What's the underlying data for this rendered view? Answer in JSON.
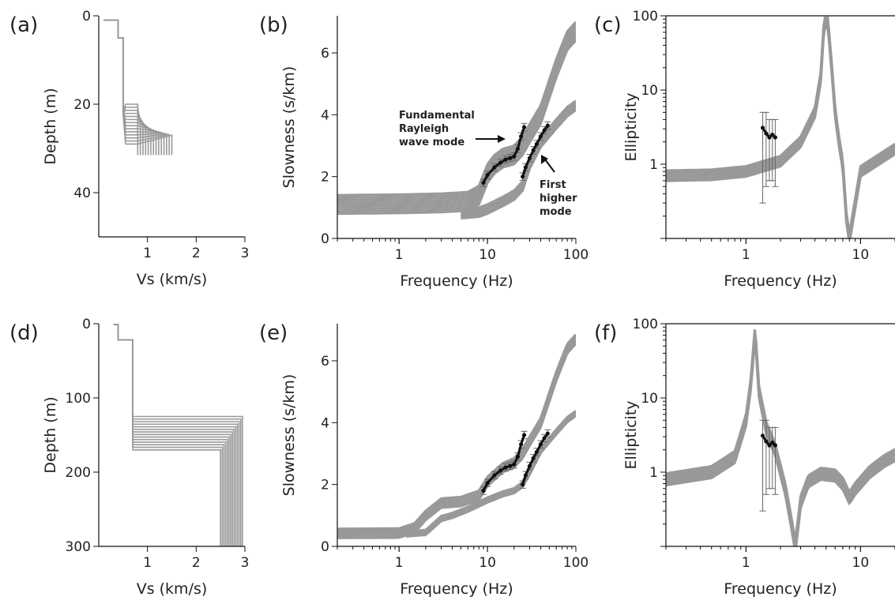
{
  "figure": {
    "background": "#ffffff",
    "ensemble_color": "#999999",
    "observed_color": "#111111"
  },
  "chart_data": [
    {
      "panel": "(a)",
      "type": "line",
      "xlabel": "Vs (km/s)",
      "ylabel": "Depth (m)",
      "xlim": [
        0,
        3
      ],
      "ylim": [
        0,
        50
      ],
      "y_inverted": true,
      "xticks": [
        1,
        2,
        3
      ],
      "yticks": [
        0,
        20,
        40
      ],
      "series": [
        {
          "role": "ensemble",
          "color": "#999999",
          "x": [
            0.1,
            0.4,
            0.4,
            0.5,
            0.5,
            0.55,
            0.55,
            0.8,
            0.8,
            1.5
          ],
          "y": [
            1,
            1,
            5,
            5,
            22,
            22,
            25,
            25,
            31.5,
            31.5
          ],
          "spread": {
            "vs_layer4": [
              0.8,
              1.5
            ],
            "depth_layer3": [
              20,
              29
            ]
          }
        }
      ]
    },
    {
      "panel": "(b)",
      "type": "line",
      "xlabel": "Frequency (Hz)",
      "ylabel": "Slowness (s/km)",
      "xscale": "log",
      "xlim": [
        0.2,
        100
      ],
      "ylim": [
        0,
        7.2
      ],
      "xticks": [
        1,
        10,
        100
      ],
      "yticks": [
        0,
        2,
        4,
        6
      ],
      "annotations": [
        {
          "text": [
            "Fundamental",
            "Rayleigh",
            "wave mode"
          ],
          "x": 12,
          "y": 2.75
        },
        {
          "text": [
            "First",
            "higher",
            "mode"
          ],
          "x": 32,
          "y": 2.3
        }
      ],
      "series": [
        {
          "role": "fundamental-ensemble",
          "color": "#999999",
          "x": [
            0.2,
            1,
            3,
            6,
            8,
            10,
            12,
            15,
            20,
            25,
            30,
            40,
            60,
            80,
            100
          ],
          "y": [
            1.1,
            1.12,
            1.15,
            1.2,
            1.4,
            2.1,
            2.4,
            2.6,
            2.7,
            3.0,
            3.4,
            4.0,
            5.5,
            6.4,
            6.7
          ],
          "spread": 0.3
        },
        {
          "role": "higher-mode-ensemble",
          "color": "#999999",
          "x": [
            5,
            8,
            10,
            15,
            20,
            25,
            30,
            40,
            60,
            80,
            100
          ],
          "y": [
            0.8,
            0.85,
            0.95,
            1.2,
            1.4,
            1.7,
            2.4,
            3.1,
            3.7,
            4.1,
            4.3
          ],
          "spread": 0.15
        },
        {
          "role": "observed",
          "color": "#111111",
          "error_bars": 0.12,
          "x": [
            9,
            10,
            12,
            14,
            16,
            18,
            20,
            22,
            24,
            26
          ],
          "y": [
            1.8,
            2.05,
            2.3,
            2.45,
            2.55,
            2.6,
            2.65,
            2.9,
            3.3,
            3.6
          ]
        },
        {
          "role": "observed",
          "color": "#111111",
          "error_bars": 0.12,
          "x": [
            25,
            27,
            30,
            33,
            36,
            40,
            44,
            48
          ],
          "y": [
            2.0,
            2.3,
            2.6,
            2.85,
            3.05,
            3.3,
            3.5,
            3.65
          ]
        }
      ]
    },
    {
      "panel": "(c)",
      "type": "line",
      "xlabel": "Frequency (Hz)",
      "ylabel": "Ellipticity",
      "xscale": "log",
      "yscale": "log",
      "xlim": [
        0.2,
        20
      ],
      "ylim": [
        0.1,
        100
      ],
      "xticks": [
        1,
        10
      ],
      "yticks": [
        1,
        10,
        100
      ],
      "series": [
        {
          "role": "ensemble",
          "color": "#999999",
          "x": [
            0.2,
            0.5,
            1,
            2,
            3,
            4,
            4.5,
            4.8,
            5.2,
            5.6,
            6,
            6.5,
            7,
            7.5,
            8,
            10,
            15,
            20
          ],
          "y": [
            0.7,
            0.72,
            0.8,
            1.1,
            2,
            5,
            15,
            80,
            80,
            20,
            5,
            2,
            1,
            0.2,
            0.1,
            0.8,
            1.2,
            1.6
          ],
          "spread": 0.07
        },
        {
          "role": "observed",
          "color": "#111111",
          "x": [
            1.4,
            1.5,
            1.6,
            1.7,
            1.8
          ],
          "y": [
            3.1,
            2.6,
            2.3,
            2.5,
            2.3
          ],
          "error_low": [
            0.3,
            0.5,
            0.6,
            0.6,
            0.5
          ],
          "error_high": [
            5,
            5,
            4,
            4,
            4
          ]
        }
      ]
    },
    {
      "panel": "(d)",
      "type": "line",
      "xlabel": "Vs (km/s)",
      "ylabel": "Depth (m)",
      "xlim": [
        0,
        3
      ],
      "ylim": [
        0,
        300
      ],
      "y_inverted": true,
      "xticks": [
        1,
        2,
        3
      ],
      "yticks": [
        0,
        100,
        200,
        300
      ],
      "series": [
        {
          "role": "ensemble",
          "color": "#999999",
          "x": [
            0.3,
            0.4,
            0.4,
            0.7,
            0.7,
            2.7,
            2.7
          ],
          "y": [
            1,
            1,
            22,
            22,
            155,
            155,
            300
          ],
          "spread": {
            "vs_half_space": [
              2.5,
              2.95
            ],
            "depth_layer2": [
              125,
              170
            ]
          }
        }
      ]
    },
    {
      "panel": "(e)",
      "type": "line",
      "xlabel": "Frequency (Hz)",
      "ylabel": "Slowness (s/km)",
      "xscale": "log",
      "xlim": [
        0.2,
        100
      ],
      "ylim": [
        0,
        7.2
      ],
      "xticks": [
        1,
        10,
        100
      ],
      "yticks": [
        0,
        2,
        4,
        6
      ],
      "series": [
        {
          "role": "fundamental-ensemble",
          "color": "#999999",
          "x": [
            0.2,
            1,
            1.5,
            2,
            3,
            5,
            8,
            10,
            15,
            20,
            25,
            30,
            40,
            60,
            80,
            100
          ],
          "y": [
            0.42,
            0.43,
            0.6,
            1.0,
            1.4,
            1.45,
            1.65,
            2.1,
            2.55,
            2.7,
            3.0,
            3.4,
            4.0,
            5.5,
            6.4,
            6.7
          ],
          "spread": 0.15
        },
        {
          "role": "higher-mode-ensemble",
          "color": "#999999",
          "x": [
            1.2,
            2,
            3,
            4,
            6,
            10,
            15,
            20,
            25,
            30,
            40,
            60,
            80,
            100
          ],
          "y": [
            0.4,
            0.45,
            0.9,
            1.0,
            1.2,
            1.5,
            1.7,
            1.8,
            2.0,
            2.4,
            3.1,
            3.7,
            4.1,
            4.3
          ],
          "spread": 0.08
        },
        {
          "role": "observed",
          "color": "#111111",
          "error_bars": 0.12,
          "x": [
            9,
            10,
            12,
            14,
            16,
            18,
            20,
            22,
            24,
            26
          ],
          "y": [
            1.8,
            2.05,
            2.3,
            2.45,
            2.55,
            2.6,
            2.65,
            2.9,
            3.3,
            3.6
          ]
        },
        {
          "role": "observed",
          "color": "#111111",
          "error_bars": 0.12,
          "x": [
            25,
            27,
            30,
            33,
            36,
            40,
            44,
            48
          ],
          "y": [
            2.0,
            2.3,
            2.6,
            2.85,
            3.05,
            3.3,
            3.5,
            3.65
          ]
        }
      ]
    },
    {
      "panel": "(f)",
      "type": "line",
      "xlabel": "Frequency (Hz)",
      "ylabel": "Ellipticity",
      "xscale": "log",
      "yscale": "log",
      "xlim": [
        0.2,
        20
      ],
      "ylim": [
        0.1,
        100
      ],
      "xticks": [
        1,
        10
      ],
      "yticks": [
        1,
        10,
        100
      ],
      "series": [
        {
          "role": "ensemble",
          "color": "#999999",
          "x": [
            0.2,
            0.5,
            0.8,
            1.0,
            1.1,
            1.2,
            1.3,
            1.5,
            1.8,
            2.2,
            2.5,
            2.7,
            3.0,
            3.5,
            4.5,
            6,
            7,
            8,
            9,
            12,
            16,
            20
          ],
          "y": [
            0.8,
            1.0,
            1.6,
            5,
            15,
            80,
            12,
            4,
            2,
            0.6,
            0.2,
            0.1,
            0.4,
            0.75,
            0.95,
            0.9,
            0.7,
            0.45,
            0.6,
            1.0,
            1.4,
            1.7
          ],
          "spread": 0.08
        },
        {
          "role": "observed",
          "color": "#111111",
          "x": [
            1.4,
            1.5,
            1.6,
            1.7,
            1.8
          ],
          "y": [
            3.1,
            2.6,
            2.3,
            2.5,
            2.3
          ],
          "error_low": [
            0.3,
            0.5,
            0.6,
            0.6,
            0.5
          ],
          "error_high": [
            5,
            5,
            4,
            4,
            4
          ]
        }
      ]
    }
  ]
}
